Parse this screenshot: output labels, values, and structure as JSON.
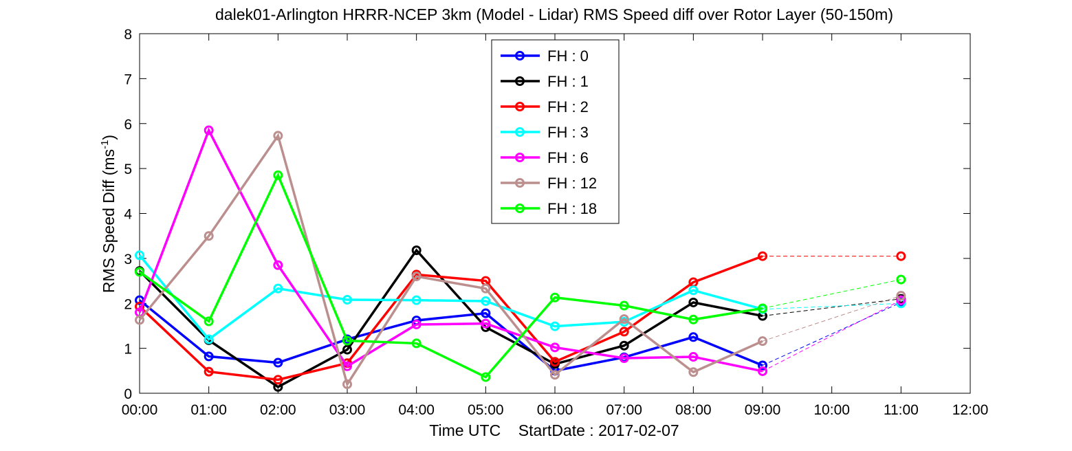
{
  "chart_data": {
    "type": "line",
    "title": "dalek01-Arlington HRRR-NCEP 3km (Model - Lidar) RMS Speed diff over Rotor Layer (50-150m)",
    "xlabel": "Time UTC    StartDate : 2017-02-07",
    "ylabel": "RMS Speed Diff (ms",
    "ylabel_sup": "-1",
    "ylabel_tail": ")",
    "x_ticks": [
      "00:00",
      "01:00",
      "02:00",
      "03:00",
      "04:00",
      "05:00",
      "06:00",
      "07:00",
      "08:00",
      "09:00",
      "10:00",
      "11:00",
      "12:00"
    ],
    "y_ticks": [
      "0",
      "1",
      "2",
      "3",
      "4",
      "5",
      "6",
      "7",
      "8"
    ],
    "xlim": [
      0,
      12
    ],
    "ylim": [
      0,
      8
    ],
    "grid": false,
    "legend_position": "top-center",
    "series": [
      {
        "name": "FH : 0",
        "color": "#0000ff",
        "x": [
          0,
          1,
          2,
          3,
          4,
          5,
          6,
          7,
          8,
          9
        ],
        "values": [
          2.07,
          0.82,
          0.68,
          1.2,
          1.62,
          1.78,
          0.5,
          0.8,
          1.25,
          0.62
        ],
        "extension": [
          [
            9,
            0.62
          ],
          [
            11,
            2.02
          ]
        ]
      },
      {
        "name": "FH : 1",
        "color": "#000000",
        "x": [
          0,
          1,
          2,
          3,
          4,
          5,
          6,
          7,
          8,
          9
        ],
        "values": [
          2.72,
          1.18,
          0.14,
          0.97,
          3.18,
          1.47,
          0.65,
          1.06,
          2.02,
          1.72
        ],
        "extension": [
          [
            9,
            1.72
          ],
          [
            11,
            2.1
          ]
        ]
      },
      {
        "name": "FH : 2",
        "color": "#ff0000",
        "x": [
          0,
          1,
          2,
          3,
          4,
          5,
          6,
          7,
          8,
          9
        ],
        "values": [
          1.93,
          0.48,
          0.3,
          0.67,
          2.64,
          2.5,
          0.7,
          1.37,
          2.47,
          3.05
        ],
        "extension": [
          [
            9,
            3.05
          ],
          [
            11,
            3.05
          ]
        ]
      },
      {
        "name": "FH : 3",
        "color": "#00ffff",
        "x": [
          0,
          1,
          2,
          3,
          4,
          5,
          6,
          7,
          8,
          9
        ],
        "values": [
          3.07,
          1.2,
          2.33,
          2.08,
          2.07,
          2.05,
          1.49,
          1.59,
          2.29,
          1.87
        ],
        "extension": [
          [
            9,
            1.87
          ],
          [
            11,
            2.0
          ]
        ]
      },
      {
        "name": "FH : 6",
        "color": "#ff00ff",
        "x": [
          0,
          1,
          2,
          3,
          4,
          5,
          6,
          7,
          8,
          9
        ],
        "values": [
          1.8,
          5.85,
          2.85,
          0.6,
          1.53,
          1.55,
          1.02,
          0.78,
          0.81,
          0.49
        ],
        "extension": [
          [
            9,
            0.49
          ],
          [
            11,
            2.07
          ]
        ]
      },
      {
        "name": "FH : 12",
        "color": "#bc8f8f",
        "x": [
          0,
          1,
          2,
          3,
          4,
          5,
          6,
          7,
          8,
          9
        ],
        "values": [
          1.63,
          3.5,
          5.73,
          0.2,
          2.6,
          2.33,
          0.41,
          1.65,
          0.47,
          1.16
        ],
        "extension": [
          [
            9,
            1.16
          ],
          [
            11,
            2.17
          ]
        ]
      },
      {
        "name": "FH : 18",
        "color": "#00ff00",
        "x": [
          0,
          1,
          2,
          3,
          4,
          5,
          6,
          7,
          8,
          9
        ],
        "values": [
          2.7,
          1.6,
          4.85,
          1.17,
          1.11,
          0.36,
          2.13,
          1.95,
          1.64,
          1.89
        ],
        "extension": [
          [
            9,
            1.89
          ],
          [
            11,
            2.53
          ]
        ]
      }
    ]
  }
}
